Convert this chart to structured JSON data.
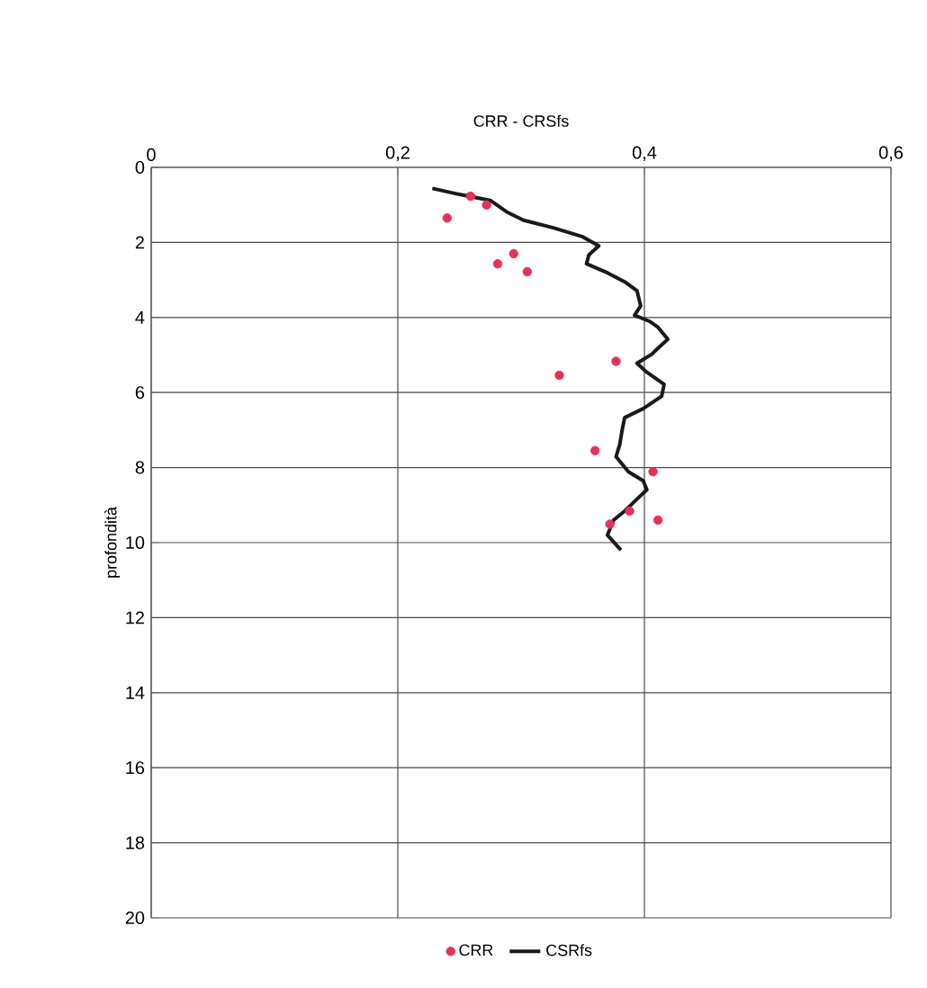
{
  "chart_data": {
    "type": "scatter",
    "xlabel": "CRR - CRSfs",
    "ylabel": "profondità",
    "xlim": [
      0,
      0.6
    ],
    "ylim": [
      20,
      0
    ],
    "xticks": [
      0,
      {
        "value": 0.2,
        "label": "0,2"
      },
      {
        "value": 0.4,
        "label": "0,4"
      },
      {
        "value": 0.6,
        "label": "0,6"
      }
    ],
    "yticks": [
      0,
      2,
      4,
      6,
      8,
      10,
      12,
      14,
      16,
      18,
      20
    ],
    "grid": true,
    "legend": "bottom",
    "series": [
      {
        "name": "CRR",
        "marker": "circle",
        "color": "#e8315a",
        "x": [
          0.259,
          0.272,
          0.24,
          0.294,
          0.281,
          0.305,
          0.377,
          0.331,
          0.36,
          0.407,
          0.388,
          0.411,
          0.372
        ],
        "values": [
          0.77,
          1.0,
          1.35,
          2.3,
          2.57,
          2.78,
          5.17,
          5.54,
          7.55,
          8.11,
          9.16,
          9.4,
          9.51
        ]
      },
      {
        "name": "CSRfs",
        "type": "line",
        "marker": "none",
        "color": "#1a1a1a",
        "x": [
          0.228,
          0.25,
          0.275,
          0.289,
          0.302,
          0.326,
          0.35,
          0.363,
          0.355,
          0.353,
          0.37,
          0.384,
          0.394,
          0.397,
          0.392,
          0.404,
          0.411,
          0.419,
          0.411,
          0.406,
          0.394,
          0.402,
          0.416,
          0.414,
          0.399,
          0.384,
          0.382,
          0.38,
          0.377,
          0.387,
          0.399,
          0.402,
          0.394,
          0.384,
          0.375,
          0.37,
          0.381
        ],
        "values": [
          0.56,
          0.72,
          0.88,
          1.2,
          1.41,
          1.61,
          1.85,
          2.09,
          2.33,
          2.57,
          2.81,
          3.05,
          3.29,
          3.69,
          3.94,
          4.1,
          4.26,
          4.58,
          4.82,
          4.98,
          5.22,
          5.46,
          5.78,
          6.1,
          6.43,
          6.67,
          6.99,
          7.39,
          7.71,
          8.11,
          8.35,
          8.59,
          8.84,
          9.16,
          9.4,
          9.8,
          10.2
        ]
      }
    ]
  }
}
